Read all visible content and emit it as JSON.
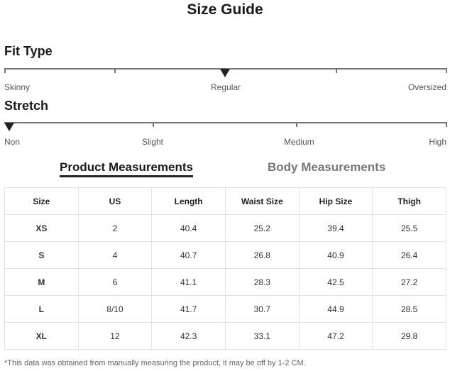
{
  "title": "Size Guide",
  "fit_type": {
    "label": "Fit Type",
    "options": [
      "Skinny",
      "Regular",
      "Oversized"
    ],
    "selected": "Regular"
  },
  "stretch": {
    "label": "Stretch",
    "options": [
      "Non",
      "Slight",
      "Medium",
      "High"
    ],
    "selected": "Non"
  },
  "tabs": [
    {
      "label": "Product Measurements",
      "active": true
    },
    {
      "label": "Body Measurements",
      "active": false
    }
  ],
  "table": {
    "headers": [
      "Size",
      "US",
      "Length",
      "Waist Size",
      "Hip Size",
      "Thigh"
    ],
    "rows": [
      [
        "XS",
        "2",
        "40.4",
        "25.2",
        "39.4",
        "25.5"
      ],
      [
        "S",
        "4",
        "40.7",
        "26.8",
        "40.9",
        "26.4"
      ],
      [
        "M",
        "6",
        "41.1",
        "28.3",
        "42.5",
        "27.2"
      ],
      [
        "L",
        "8/10",
        "41.7",
        "30.7",
        "44.9",
        "28.5"
      ],
      [
        "XL",
        "12",
        "42.3",
        "33.1",
        "47.2",
        "29.8"
      ]
    ]
  },
  "note": "*This data was obtained from manually measuring the product, it may be off by 1-2 CM."
}
